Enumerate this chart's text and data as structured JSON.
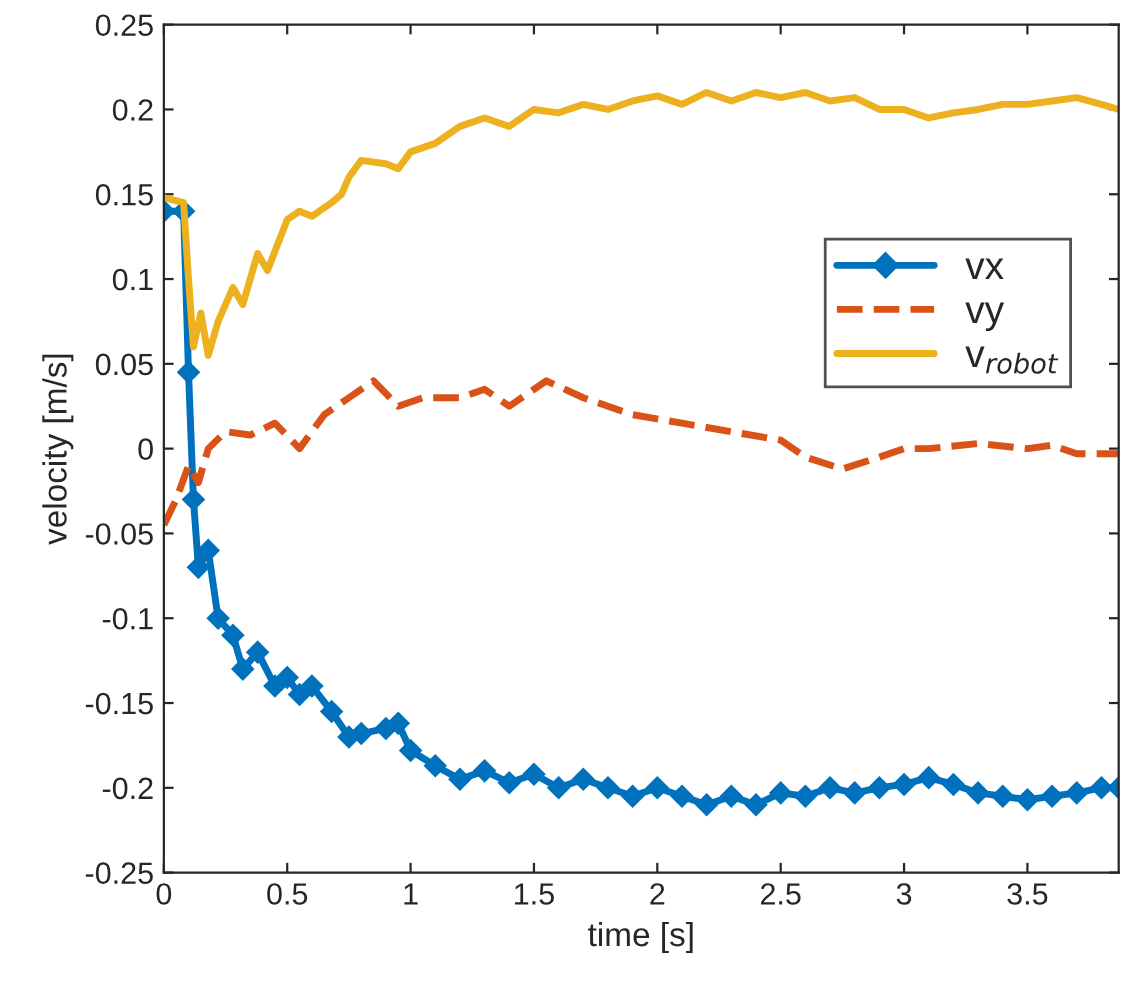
{
  "chart_data": {
    "type": "line",
    "xlabel": "time [s]",
    "ylabel": "velocity [m/s]",
    "xlim": [
      0,
      3.87
    ],
    "xticks": [
      0,
      0.5,
      1,
      1.5,
      2,
      2.5,
      3,
      3.5
    ],
    "ylim": [
      -0.25,
      0.25
    ],
    "yticks": [
      -0.25,
      -0.2,
      -0.15,
      -0.1,
      -0.05,
      0,
      0.05,
      0.1,
      0.15,
      0.2,
      0.25
    ],
    "grid": false,
    "legend": "right",
    "series": [
      {
        "name": "vx",
        "color": "#0072bd",
        "marker": "diamond",
        "line_style": "solid",
        "x": [
          0,
          0.08,
          0.1,
          0.12,
          0.14,
          0.18,
          0.22,
          0.28,
          0.32,
          0.38,
          0.45,
          0.5,
          0.55,
          0.6,
          0.68,
          0.75,
          0.8,
          0.9,
          0.95,
          1.0,
          1.1,
          1.2,
          1.3,
          1.4,
          1.5,
          1.6,
          1.7,
          1.8,
          1.9,
          2.0,
          2.1,
          2.2,
          2.3,
          2.4,
          2.5,
          2.6,
          2.7,
          2.8,
          2.9,
          3.0,
          3.1,
          3.2,
          3.3,
          3.4,
          3.5,
          3.6,
          3.7,
          3.8,
          3.87
        ],
        "values": [
          0.14,
          0.14,
          0.045,
          -0.03,
          -0.07,
          -0.06,
          -0.1,
          -0.11,
          -0.13,
          -0.12,
          -0.14,
          -0.135,
          -0.145,
          -0.14,
          -0.155,
          -0.17,
          -0.168,
          -0.165,
          -0.162,
          -0.178,
          -0.187,
          -0.195,
          -0.19,
          -0.197,
          -0.192,
          -0.2,
          -0.195,
          -0.2,
          -0.205,
          -0.2,
          -0.205,
          -0.21,
          -0.205,
          -0.21,
          -0.203,
          -0.205,
          -0.2,
          -0.203,
          -0.2,
          -0.198,
          -0.194,
          -0.198,
          -0.203,
          -0.205,
          -0.207,
          -0.205,
          -0.203,
          -0.2,
          -0.2
        ]
      },
      {
        "name": "vy",
        "color": "#d95319",
        "marker": "none",
        "line_style": "dashed",
        "x": [
          0,
          0.05,
          0.1,
          0.14,
          0.18,
          0.25,
          0.35,
          0.45,
          0.55,
          0.65,
          0.75,
          0.85,
          0.95,
          1.05,
          1.2,
          1.3,
          1.4,
          1.55,
          1.7,
          1.8,
          1.9,
          2.1,
          2.3,
          2.5,
          2.6,
          2.75,
          2.9,
          3.0,
          3.1,
          3.3,
          3.5,
          3.6,
          3.7,
          3.87
        ],
        "values": [
          -0.045,
          -0.03,
          -0.01,
          -0.02,
          0.0,
          0.01,
          0.008,
          0.015,
          0.0,
          0.02,
          0.03,
          0.04,
          0.025,
          0.03,
          0.03,
          0.035,
          0.025,
          0.04,
          0.03,
          0.025,
          0.02,
          0.015,
          0.01,
          0.005,
          -0.005,
          -0.012,
          -0.005,
          0.0,
          0.0,
          0.003,
          0.0,
          0.002,
          -0.003,
          -0.003
        ]
      },
      {
        "name": "v$_{robot}$",
        "color": "#edb120",
        "marker": "none",
        "line_style": "solid",
        "x": [
          0,
          0.08,
          0.1,
          0.12,
          0.15,
          0.18,
          0.22,
          0.28,
          0.32,
          0.38,
          0.42,
          0.5,
          0.55,
          0.6,
          0.68,
          0.72,
          0.75,
          0.8,
          0.9,
          0.95,
          1.0,
          1.1,
          1.2,
          1.3,
          1.4,
          1.5,
          1.6,
          1.7,
          1.8,
          1.9,
          2.0,
          2.1,
          2.2,
          2.3,
          2.4,
          2.5,
          2.6,
          2.7,
          2.8,
          2.9,
          3.0,
          3.1,
          3.2,
          3.3,
          3.4,
          3.5,
          3.6,
          3.7,
          3.8,
          3.87
        ],
        "values": [
          0.148,
          0.145,
          0.1,
          0.06,
          0.08,
          0.055,
          0.075,
          0.095,
          0.085,
          0.115,
          0.105,
          0.135,
          0.14,
          0.137,
          0.145,
          0.15,
          0.16,
          0.17,
          0.168,
          0.165,
          0.175,
          0.18,
          0.19,
          0.195,
          0.19,
          0.2,
          0.198,
          0.203,
          0.2,
          0.205,
          0.208,
          0.203,
          0.21,
          0.205,
          0.21,
          0.207,
          0.21,
          0.205,
          0.207,
          0.2,
          0.2,
          0.195,
          0.198,
          0.2,
          0.203,
          0.203,
          0.205,
          0.207,
          0.203,
          0.2
        ]
      }
    ]
  }
}
